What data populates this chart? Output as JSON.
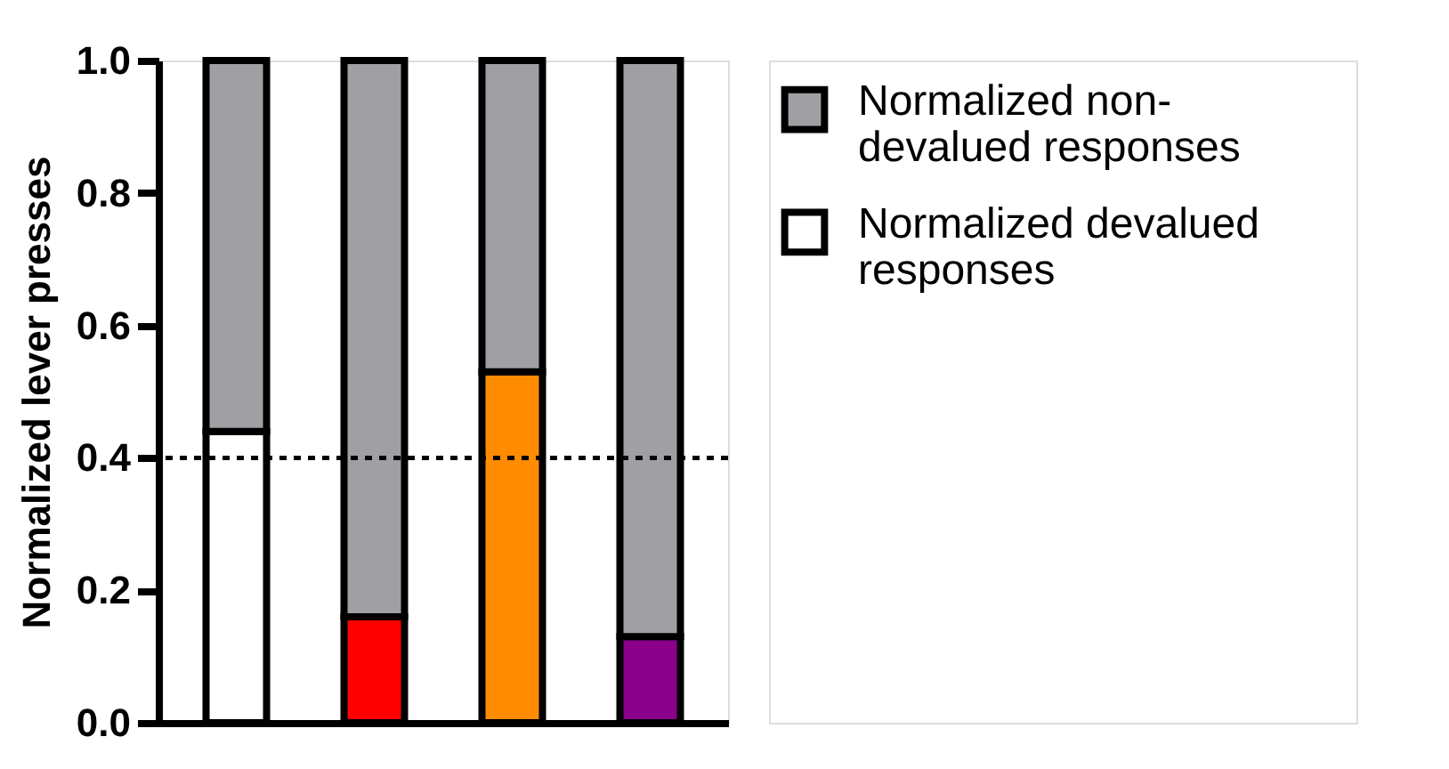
{
  "chart_data": {
    "type": "bar",
    "ylabel": "Normalized lever presses",
    "categories": [
      null,
      null,
      null,
      null
    ],
    "stacked": true,
    "series": [
      {
        "name": "Normalized devalued responses",
        "colors": [
          "#ffffff",
          "#ff0000",
          "#ff8c00",
          "#8b008b"
        ],
        "values": [
          0.44,
          0.16,
          0.53,
          0.13
        ]
      },
      {
        "name": "Normalized non-devalued responses",
        "color": "#a0a0a4",
        "values": [
          0.56,
          0.84,
          0.47,
          0.87
        ]
      }
    ],
    "ylim": [
      0,
      1.0
    ],
    "yticks": [
      {
        "value": 0,
        "label": "0.0"
      },
      0.2,
      0.4,
      0.6,
      0.8,
      {
        "value": 1.0,
        "label": "1.0"
      }
    ],
    "ref_lines": [
      {
        "axis": "y",
        "value": 0.4,
        "line_style": "dashed",
        "color": "#000000"
      }
    ],
    "tick_labels": "y",
    "grid": false,
    "legend": "right"
  }
}
